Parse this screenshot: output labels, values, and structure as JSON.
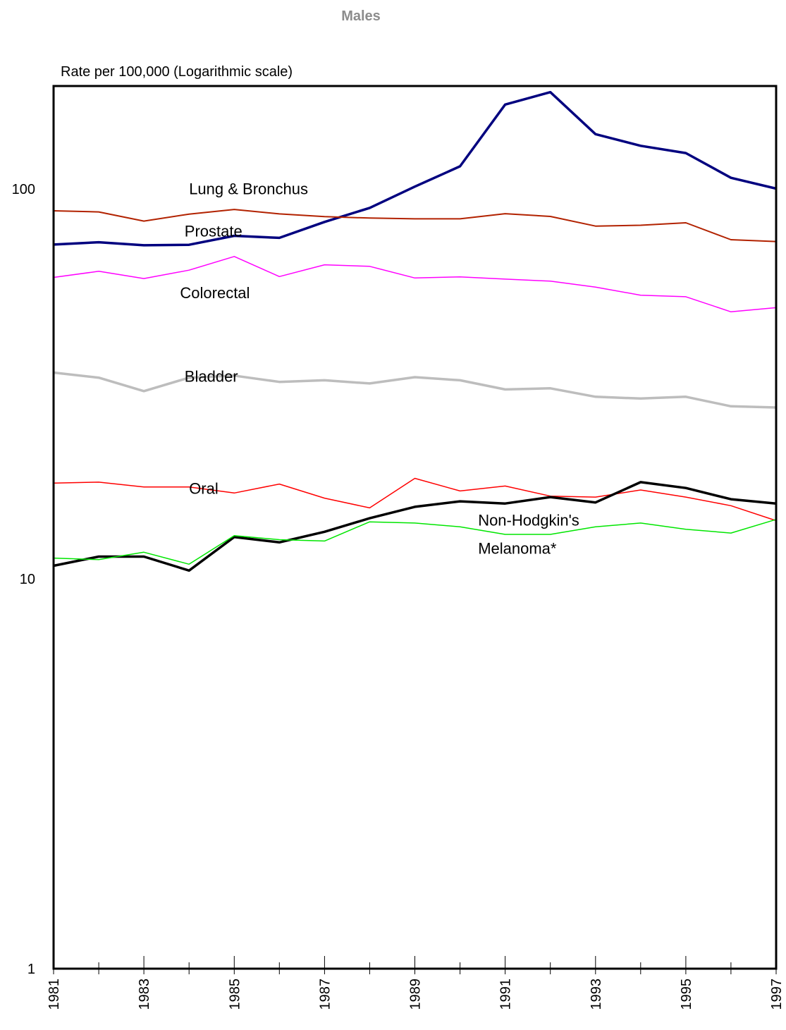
{
  "chart_data": {
    "type": "line",
    "title": "Males",
    "ylabel": "Rate per 100,000 (Logarithmic scale)",
    "xlabel": "",
    "y_scale": "log",
    "ylim": [
      1,
      180
    ],
    "xlim": [
      1981,
      1997
    ],
    "y_ticks": [
      1,
      10,
      100
    ],
    "y_tick_labels": [
      "1",
      "10",
      "100"
    ],
    "x_tick_labels": [
      "1981",
      "1983",
      "1985",
      "1987",
      "1989",
      "1991",
      "1993",
      "1995",
      "1997"
    ],
    "x": [
      1981,
      1982,
      1983,
      1984,
      1985,
      1986,
      1987,
      1988,
      1989,
      1990,
      1991,
      1992,
      1993,
      1994,
      1995,
      1996,
      1997
    ],
    "grid": false,
    "series": [
      {
        "name": "Prostate",
        "color": "#00007f",
        "width": 3.5,
        "values": [
          72.0,
          73.0,
          71.7,
          71.9,
          75.8,
          74.9,
          82.3,
          89.4,
          101.4,
          114.3,
          164.6,
          177.1,
          138.2,
          129.0,
          123.6,
          106.8,
          100.2
        ]
      },
      {
        "name": "Lung & Bronchus",
        "color": "#b22200",
        "width": 2,
        "values": [
          87.9,
          87.3,
          82.7,
          86.2,
          88.6,
          86.3,
          84.9,
          84.2,
          83.8,
          83.8,
          86.4,
          85.0,
          80.3,
          80.7,
          81.9,
          74.1,
          73.3
        ]
      },
      {
        "name": "Colorectal",
        "color": "#ff00ff",
        "width": 1.5,
        "values": [
          59.3,
          61.5,
          58.9,
          61.9,
          67.1,
          59.6,
          63.9,
          63.3,
          59.1,
          59.5,
          58.7,
          58.0,
          56.0,
          53.4,
          52.9,
          48.4,
          49.6
        ]
      },
      {
        "name": "Bladder",
        "color": "#bdbdbd",
        "width": 3.5,
        "values": [
          33.8,
          32.8,
          30.3,
          32.8,
          33.2,
          32.0,
          32.3,
          31.7,
          32.9,
          32.3,
          30.6,
          30.8,
          29.3,
          29.0,
          29.3,
          27.7,
          27.5
        ]
      },
      {
        "name": "Oral",
        "color": "#ff0000",
        "width": 1.5,
        "values": [
          17.6,
          17.7,
          17.2,
          17.2,
          16.6,
          17.5,
          16.1,
          15.2,
          18.1,
          16.8,
          17.3,
          16.3,
          16.2,
          16.9,
          16.2,
          15.4,
          14.1
        ]
      },
      {
        "name": "Non-Hodgkin's",
        "color": "#000000",
        "width": 3.5,
        "values": [
          10.8,
          11.4,
          11.4,
          10.5,
          12.8,
          12.4,
          13.2,
          14.3,
          15.3,
          15.8,
          15.6,
          16.2,
          15.7,
          17.7,
          17.1,
          16.0,
          15.6
        ]
      },
      {
        "name": "Melanoma*",
        "color": "#00e600",
        "width": 1.5,
        "values": [
          11.3,
          11.2,
          11.7,
          10.9,
          12.9,
          12.6,
          12.5,
          14.0,
          13.9,
          13.6,
          13.0,
          13.0,
          13.6,
          13.9,
          13.4,
          13.1,
          14.2
        ]
      }
    ],
    "labels": [
      {
        "text": "Lung & Bronchus",
        "x": 1984,
        "y": 97
      },
      {
        "text": "Prostate",
        "x": 1983.9,
        "y": 75.5
      },
      {
        "text": "Colorectal",
        "x": 1983.8,
        "y": 52.5
      },
      {
        "text": "Bladder",
        "x": 1983.9,
        "y": 32.0
      },
      {
        "text": "Oral",
        "x": 1984,
        "y": 16.5
      },
      {
        "text": "Non-Hodgkin's",
        "x": 1990.4,
        "y": 13.7
      },
      {
        "text": "Melanoma*",
        "x": 1990.4,
        "y": 11.6
      }
    ]
  }
}
